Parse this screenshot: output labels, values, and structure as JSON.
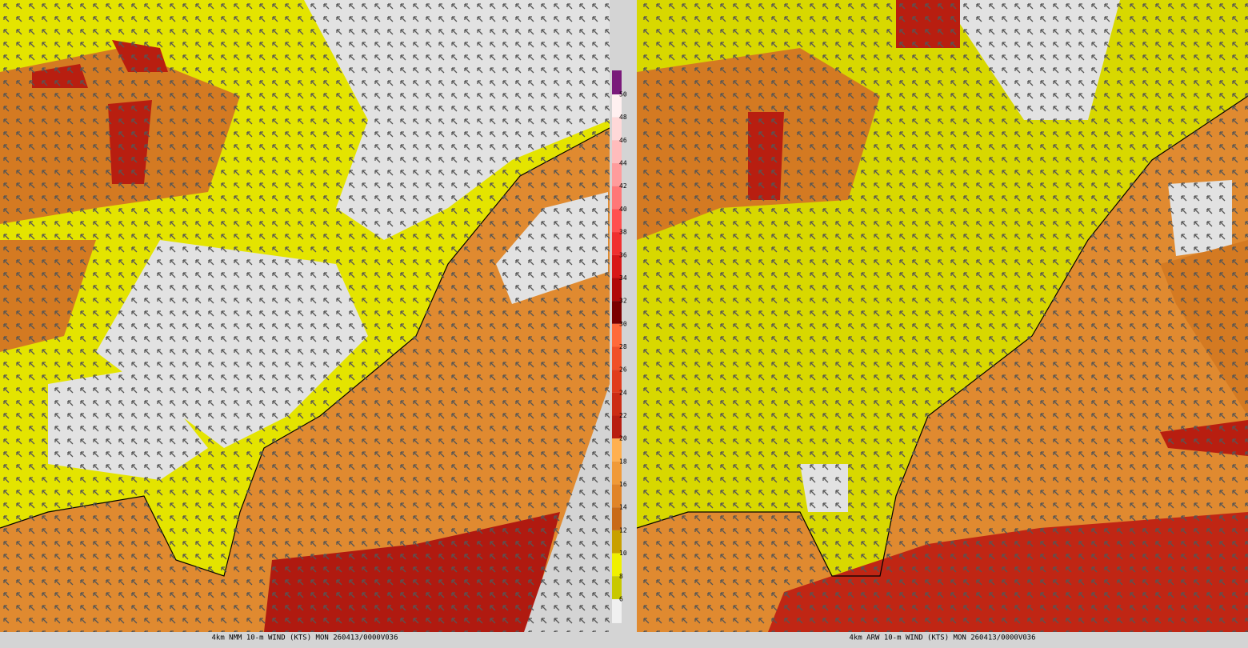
{
  "panels": [
    {
      "caption": "4km NMM 10-m WIND (KTS) MON 260413/0000V036"
    },
    {
      "caption": "4km ARW 10-m WIND (KTS) MON 260413/0000V036"
    }
  ],
  "colorbar": {
    "labels": [
      "50",
      "48",
      "46",
      "44",
      "42",
      "40",
      "38",
      "36",
      "34",
      "32",
      "30",
      "28",
      "26",
      "24",
      "22",
      "20",
      "18",
      "16",
      "14",
      "12",
      "10",
      "8",
      "6"
    ],
    "colors": [
      "#7a1a7a",
      "#fff0f0",
      "#ffd8d8",
      "#ffbcbc",
      "#ff9c9c",
      "#ff7878",
      "#ff5050",
      "#f03030",
      "#d81818",
      "#b00808",
      "#7a0000",
      "#ff6a3a",
      "#f05028",
      "#e03c1c",
      "#cc2c14",
      "#b81e10",
      "#ffb050",
      "#f09a38",
      "#e08428",
      "#c86a18",
      "#c8a000",
      "#f0f000",
      "#c8c800",
      "#f0f0f0"
    ]
  }
}
